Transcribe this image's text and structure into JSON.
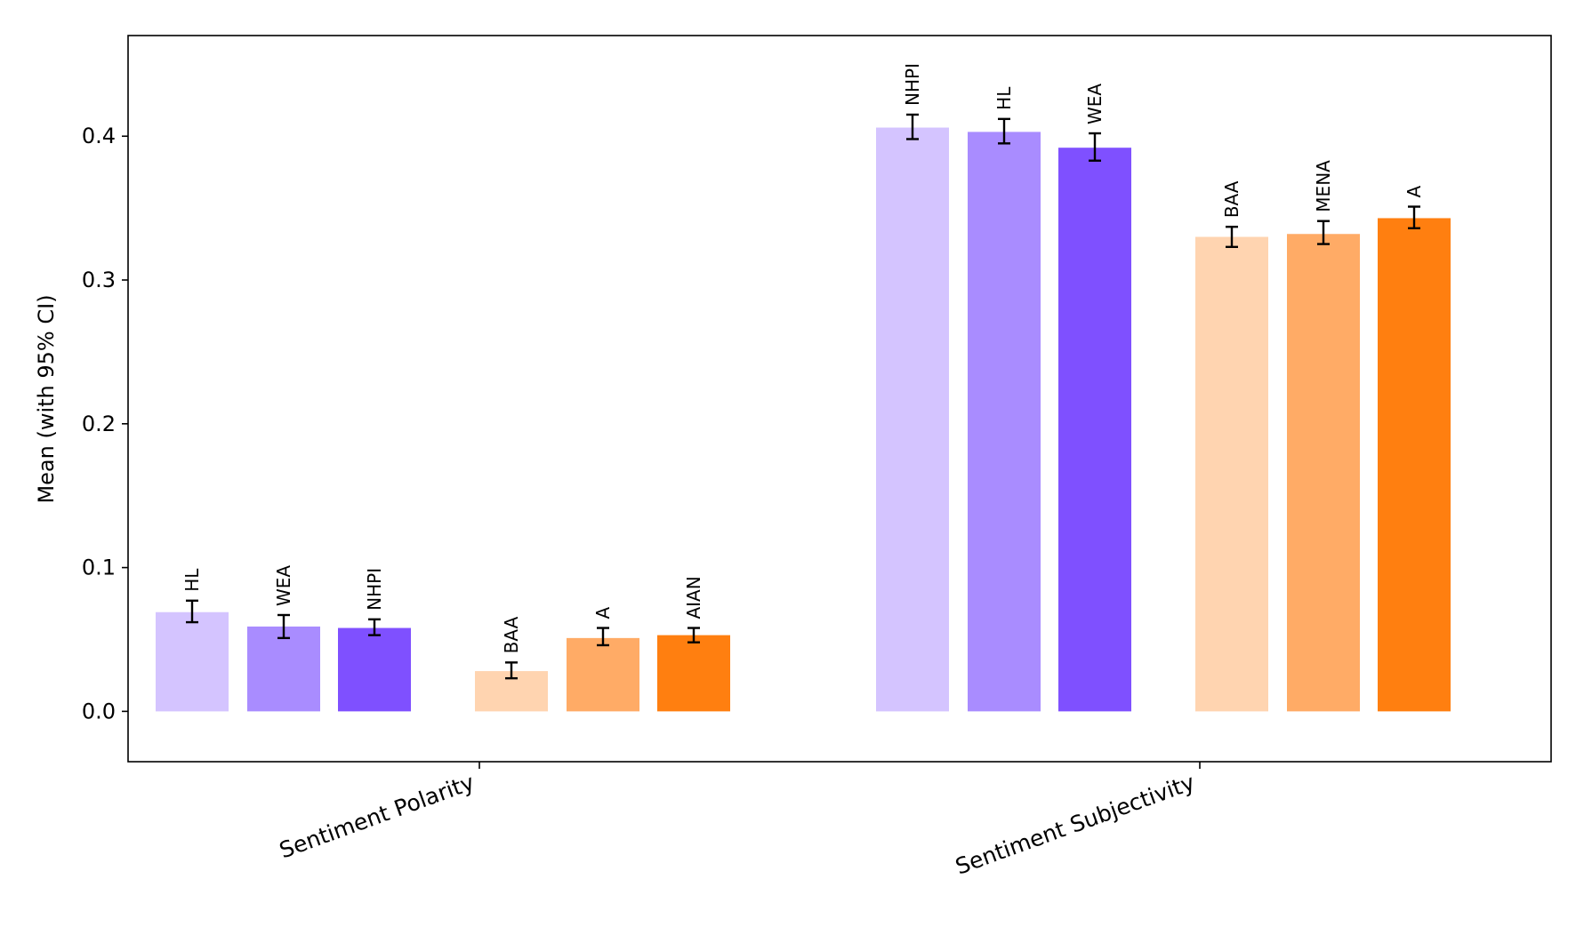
{
  "chart_data": {
    "type": "bar",
    "title": "",
    "xlabel": "",
    "ylabel": "Mean (with 95% CI)",
    "ylim": [
      -0.035,
      0.47
    ],
    "yticks": [
      "0.0",
      "0.1",
      "0.2",
      "0.3",
      "0.4"
    ],
    "categories": [
      "Sentiment Polarity",
      "Sentiment Subjectivity"
    ],
    "groups": [
      {
        "category": "Sentiment Polarity",
        "bars": [
          {
            "label": "HL",
            "value": 0.069,
            "ci_low": 0.062,
            "ci_high": 0.077,
            "color": "#d4c4ff"
          },
          {
            "label": "WEA",
            "value": 0.059,
            "ci_low": 0.051,
            "ci_high": 0.067,
            "color": "#a98cff"
          },
          {
            "label": "NHPI",
            "value": 0.058,
            "ci_low": 0.053,
            "ci_high": 0.064,
            "color": "#7f50ff"
          },
          {
            "label": "BAA",
            "value": 0.028,
            "ci_low": 0.023,
            "ci_high": 0.034,
            "color": "#ffd4b0"
          },
          {
            "label": "A",
            "value": 0.051,
            "ci_low": 0.046,
            "ci_high": 0.058,
            "color": "#ffab66"
          },
          {
            "label": "AIAN",
            "value": 0.053,
            "ci_low": 0.048,
            "ci_high": 0.058,
            "color": "#ff7f10"
          }
        ]
      },
      {
        "category": "Sentiment Subjectivity",
        "bars": [
          {
            "label": "NHPI",
            "value": 0.406,
            "ci_low": 0.398,
            "ci_high": 0.415,
            "color": "#d4c4ff"
          },
          {
            "label": "HL",
            "value": 0.403,
            "ci_low": 0.395,
            "ci_high": 0.412,
            "color": "#a98cff"
          },
          {
            "label": "WEA",
            "value": 0.392,
            "ci_low": 0.383,
            "ci_high": 0.402,
            "color": "#7f50ff"
          },
          {
            "label": "BAA",
            "value": 0.33,
            "ci_low": 0.323,
            "ci_high": 0.337,
            "color": "#ffd4b0"
          },
          {
            "label": "MENA",
            "value": 0.332,
            "ci_low": 0.325,
            "ci_high": 0.341,
            "color": "#ffab66"
          },
          {
            "label": "A",
            "value": 0.343,
            "ci_low": 0.336,
            "ci_high": 0.351,
            "color": "#ff7f10"
          }
        ]
      }
    ]
  }
}
